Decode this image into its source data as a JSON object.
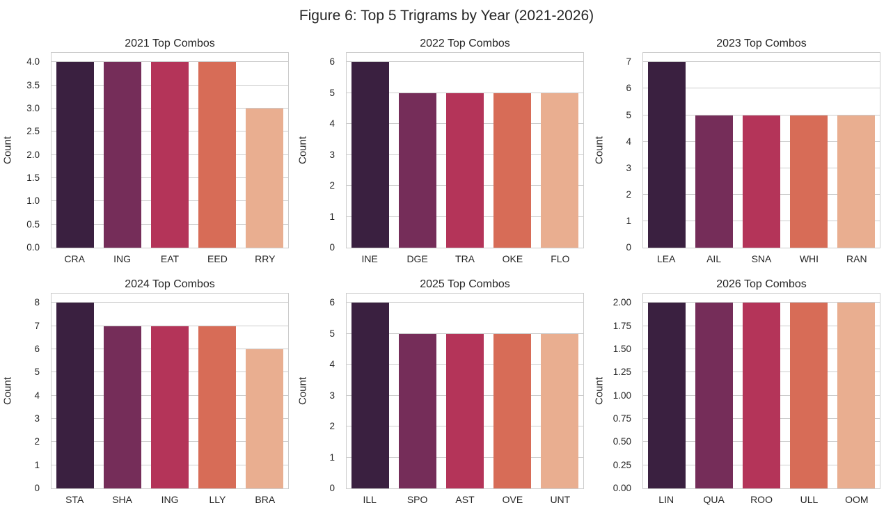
{
  "figure": {
    "title": "Figure 6: Top 5 Trigrams by Year (2021-2026)",
    "background": "#ffffff",
    "text_color": "#262626",
    "grid_color": "#cccccc"
  },
  "palette": [
    "#3a2040",
    "#752d59",
    "#b43459",
    "#d76c57",
    "#e9ae90"
  ],
  "chart_data": [
    {
      "type": "bar",
      "title": "2021 Top Combos",
      "ylabel": "Count",
      "categories": [
        "CRA",
        "ING",
        "EAT",
        "EED",
        "RRY"
      ],
      "values": [
        4,
        4,
        4,
        4,
        3
      ],
      "ylim": [
        0,
        4.2
      ],
      "yticks": [
        0,
        0.5,
        1,
        1.5,
        2,
        2.5,
        3,
        3.5,
        4
      ],
      "ytick_labels": [
        "0.0",
        "0.5",
        "1.0",
        "1.5",
        "2.0",
        "2.5",
        "3.0",
        "3.5",
        "4.0"
      ],
      "grid": true,
      "legend": "none"
    },
    {
      "type": "bar",
      "title": "2022 Top Combos",
      "ylabel": "Count",
      "categories": [
        "INE",
        "DGE",
        "TRA",
        "OKE",
        "FLO"
      ],
      "values": [
        6,
        5,
        5,
        5,
        5
      ],
      "ylim": [
        0,
        6.3
      ],
      "yticks": [
        0,
        1,
        2,
        3,
        4,
        5,
        6
      ],
      "ytick_labels": [
        "0",
        "1",
        "2",
        "3",
        "4",
        "5",
        "6"
      ],
      "grid": true,
      "legend": "none"
    },
    {
      "type": "bar",
      "title": "2023 Top Combos",
      "ylabel": "Count",
      "categories": [
        "LEA",
        "AIL",
        "SNA",
        "WHI",
        "RAN"
      ],
      "values": [
        7,
        5,
        5,
        5,
        5
      ],
      "ylim": [
        0,
        7.35
      ],
      "yticks": [
        0,
        1,
        2,
        3,
        4,
        5,
        6,
        7
      ],
      "ytick_labels": [
        "0",
        "1",
        "2",
        "3",
        "4",
        "5",
        "6",
        "7"
      ],
      "grid": true,
      "legend": "none"
    },
    {
      "type": "bar",
      "title": "2024 Top Combos",
      "ylabel": "Count",
      "categories": [
        "STA",
        "SHA",
        "ING",
        "LLY",
        "BRA"
      ],
      "values": [
        8,
        7,
        7,
        7,
        6
      ],
      "ylim": [
        0,
        8.4
      ],
      "yticks": [
        0,
        1,
        2,
        3,
        4,
        5,
        6,
        7,
        8
      ],
      "ytick_labels": [
        "0",
        "1",
        "2",
        "3",
        "4",
        "5",
        "6",
        "7",
        "8"
      ],
      "grid": true,
      "legend": "none"
    },
    {
      "type": "bar",
      "title": "2025 Top Combos",
      "ylabel": "Count",
      "categories": [
        "ILL",
        "SPO",
        "AST",
        "OVE",
        "UNT"
      ],
      "values": [
        6,
        5,
        5,
        5,
        5
      ],
      "ylim": [
        0,
        6.3
      ],
      "yticks": [
        0,
        1,
        2,
        3,
        4,
        5,
        6
      ],
      "ytick_labels": [
        "0",
        "1",
        "2",
        "3",
        "4",
        "5",
        "6"
      ],
      "grid": true,
      "legend": "none"
    },
    {
      "type": "bar",
      "title": "2026 Top Combos",
      "ylabel": "Count",
      "categories": [
        "LIN",
        "QUA",
        "ROO",
        "ULL",
        "OOM"
      ],
      "values": [
        2,
        2,
        2,
        2,
        2
      ],
      "ylim": [
        0,
        2.1
      ],
      "yticks": [
        0,
        0.25,
        0.5,
        0.75,
        1,
        1.25,
        1.5,
        1.75,
        2
      ],
      "ytick_labels": [
        "0.00",
        "0.25",
        "0.50",
        "0.75",
        "1.00",
        "1.25",
        "1.50",
        "1.75",
        "2.00"
      ],
      "grid": true,
      "legend": "none"
    }
  ]
}
